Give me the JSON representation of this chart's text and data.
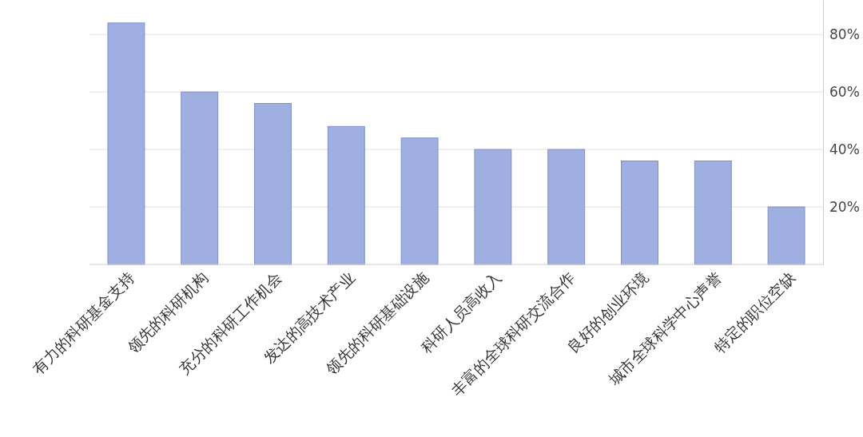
{
  "chart_data": {
    "type": "bar",
    "categories": [
      "有力的科研基金支持",
      "领先的科研机构",
      "充分的科研工作机会",
      "发达的高技术产业",
      "领先的科研基础设施",
      "科研人员高收入",
      "丰富的全球科研交流合作",
      "良好的创业环境",
      "城市全球科学中心声誉",
      "特定的职位空缺"
    ],
    "values": [
      84,
      60,
      56,
      48,
      44,
      40,
      40,
      36,
      36,
      20
    ],
    "color": "#9fafe2",
    "ylim": [
      0,
      92
    ],
    "yticks": [
      {
        "value": 20,
        "label": "20%"
      },
      {
        "value": 40,
        "label": "40%"
      },
      {
        "value": 60,
        "label": "60%"
      },
      {
        "value": 80,
        "label": "80%"
      }
    ],
    "grid": "y"
  }
}
